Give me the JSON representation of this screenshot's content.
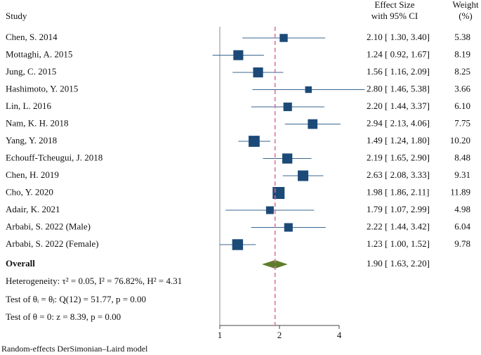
{
  "chart_data": {
    "type": "forest",
    "headers": {
      "study": "Study",
      "effect": [
        "Effect Size",
        "with 95% CI"
      ],
      "weight": [
        "Weight",
        "(%)"
      ]
    },
    "categories": [
      "Chen, S. 2014",
      "Mottaghi, A. 2015",
      "Jung, C. 2015",
      "Hashimoto, Y. 2015",
      "Lin, L. 2016",
      "Nam, K. H. 2018",
      "Yang, Y. 2018",
      "Echouff-Tcheugui, J. 2018",
      "Chen, H. 2019",
      "Cho, Y. 2020",
      "Adair, K. 2021",
      "Arbabi, S. 2022 (Male)",
      "Arbabi, S. 2022 (Female)"
    ],
    "values": [
      2.1,
      1.24,
      1.56,
      2.8,
      2.2,
      2.94,
      1.49,
      2.19,
      2.63,
      1.98,
      1.79,
      2.22,
      1.23
    ],
    "lower": [
      1.3,
      0.92,
      1.16,
      1.46,
      1.44,
      2.13,
      1.24,
      1.65,
      2.08,
      1.86,
      1.07,
      1.44,
      1.0
    ],
    "upper": [
      3.4,
      1.67,
      2.09,
      5.38,
      3.37,
      4.06,
      1.8,
      2.9,
      3.33,
      2.11,
      2.99,
      3.42,
      1.52
    ],
    "value_labels": [
      "2.10 [ 1.30,  3.40]",
      "1.24 [ 0.92,  1.67]",
      "1.56 [ 1.16,  2.09]",
      "2.80 [ 1.46,  5.38]",
      "2.20 [ 1.44,  3.37]",
      "2.94 [ 2.13,  4.06]",
      "1.49 [ 1.24,  1.80]",
      "2.19 [ 1.65,  2.90]",
      "2.63 [ 2.08,  3.33]",
      "1.98 [ 1.86,  2.11]",
      "1.79 [ 1.07,  2.99]",
      "2.22 [ 1.44,  3.42]",
      "1.23 [ 1.00,  1.52]"
    ],
    "weights": [
      5.38,
      8.19,
      8.25,
      3.66,
      6.1,
      7.75,
      10.2,
      8.48,
      9.31,
      11.89,
      4.98,
      6.04,
      9.78
    ],
    "weight_labels": [
      "5.38",
      "8.19",
      "8.25",
      "3.66",
      "6.10",
      "7.75",
      "10.20",
      "8.48",
      "9.31",
      "11.89",
      "4.98",
      "6.04",
      "9.78"
    ],
    "overall": {
      "name": "Overall",
      "value": 1.9,
      "lower": 1.63,
      "upper": 2.2,
      "label": "1.90 [ 1.63,  2.20]"
    },
    "stats": [
      "Heterogeneity: τ² = 0.05, I² = 76.82%, H² = 4.31",
      "Test of θᵢ = θⱼ: Q(12) = 51.77, p = 0.00",
      "Test of θ = 0: z = 8.39, p = 0.00"
    ],
    "note": "Random-effects DerSimonian–Laird model",
    "xlim": [
      1,
      4
    ],
    "xticks": [
      1,
      2,
      4
    ],
    "log_x": true,
    "color": "#1c4a78",
    "ci_color": "#3a6690",
    "diamond_color": "#5e7d2c",
    "ref_color": "#d4709a"
  }
}
